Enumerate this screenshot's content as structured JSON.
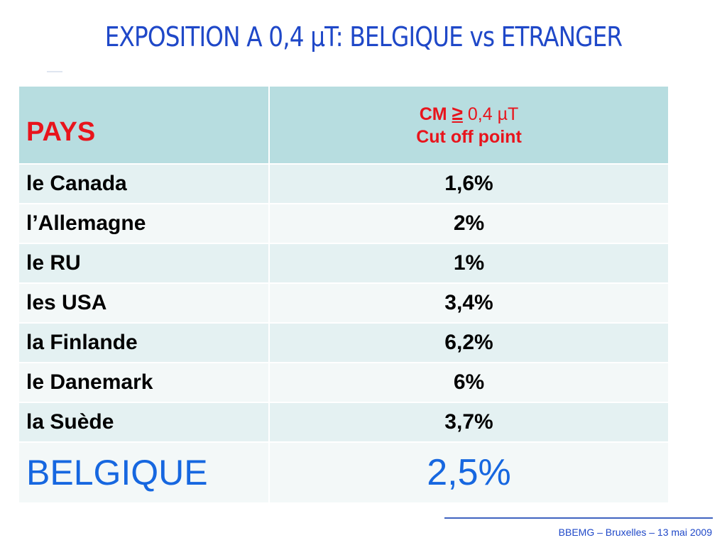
{
  "title": "EXPOSITION A 0,4 µT: BELGIQUE vs ETRANGER",
  "table": {
    "header": {
      "country": "PAYS",
      "value_before": "CM",
      "value_symbol": "≥",
      "value_after": "0,4 µT",
      "value_line2": "Cut off point"
    },
    "rows": [
      [
        "le Canada",
        "1,6%"
      ],
      [
        "l’Allemagne",
        "2%"
      ],
      [
        "le RU",
        "1%"
      ],
      [
        "les USA",
        "3,4%"
      ],
      [
        "la Finlande",
        "6,2%"
      ],
      [
        "le Danemark",
        "6%"
      ],
      [
        "la Suède",
        "3,7%"
      ],
      [
        "BELGIQUE",
        "2,5%"
      ]
    ]
  },
  "footer": "BBEMG – Bruxelles – 13 mai 2009"
}
